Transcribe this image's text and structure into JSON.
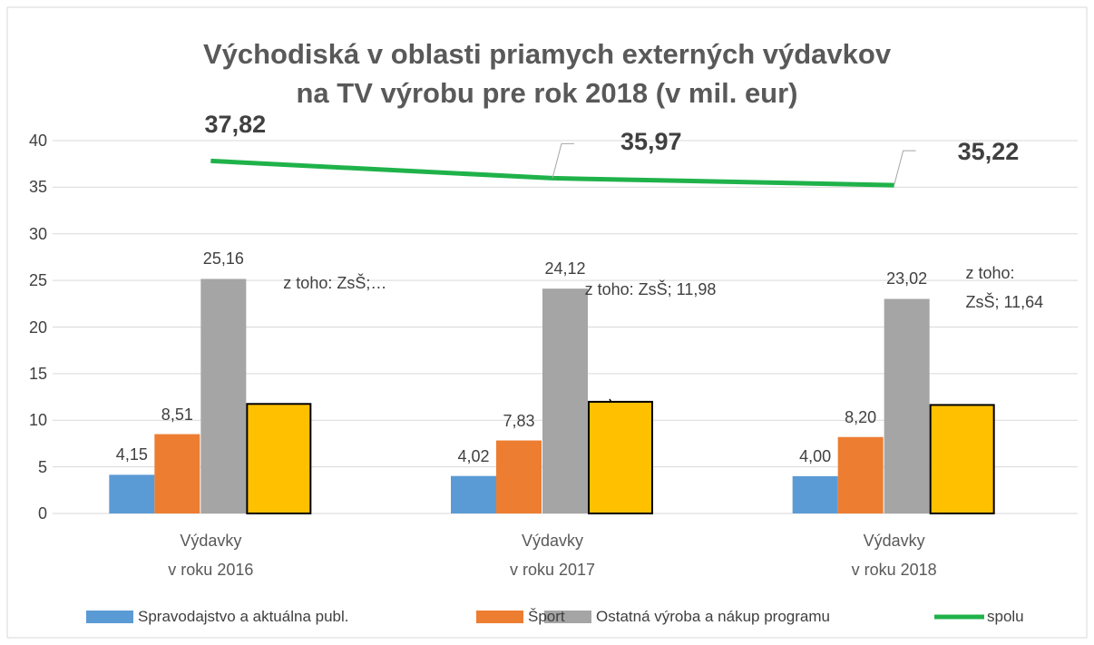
{
  "chart_data": {
    "type": "bar",
    "title": "Východiská v oblasti priamych externých výdavkov\nna TV výrobu pre rok 2018 (v mil. eur)",
    "categories": [
      "Výdavky\nv roku 2016",
      "Výdavky\nv roku 2017",
      "Výdavky\nv roku 2018"
    ],
    "series": [
      {
        "name": "Spravodajstvo a aktuálna publ.",
        "color": "#5b9bd5",
        "values": [
          4.15,
          4.02,
          4.0
        ],
        "value_labels": [
          "4,15",
          "4,02",
          "4,00"
        ]
      },
      {
        "name": "Šport",
        "color": "#ed7d31",
        "values": [
          8.51,
          7.83,
          8.2
        ],
        "value_labels": [
          "8,51",
          "7,83",
          "8,20"
        ]
      },
      {
        "name": "Ostatná výroba a nákup programu",
        "color": "#a5a5a5",
        "values": [
          25.16,
          24.12,
          23.02
        ],
        "value_labels": [
          "25,16",
          "24,12",
          "23,02"
        ]
      },
      {
        "color": "#ffc000",
        "values": [
          11.75,
          11.98,
          11.64
        ],
        "value_labels": [
          "z toho: ZsŠ;…",
          "z toho: ZsŠ; 11,98",
          "z toho: ZsŠ; 11,64"
        ]
      },
      {
        "name": "spolu",
        "type": "line",
        "color": "#1fb24a",
        "values": [
          37.82,
          35.97,
          35.22
        ],
        "value_labels": [
          "37,82",
          "35,97",
          "35,22"
        ]
      }
    ],
    "ylim": [
      0,
      40
    ],
    "yticks": [
      0,
      5,
      10,
      15,
      20,
      25,
      30,
      35,
      40
    ],
    "grid": true,
    "legend": "bottom"
  }
}
